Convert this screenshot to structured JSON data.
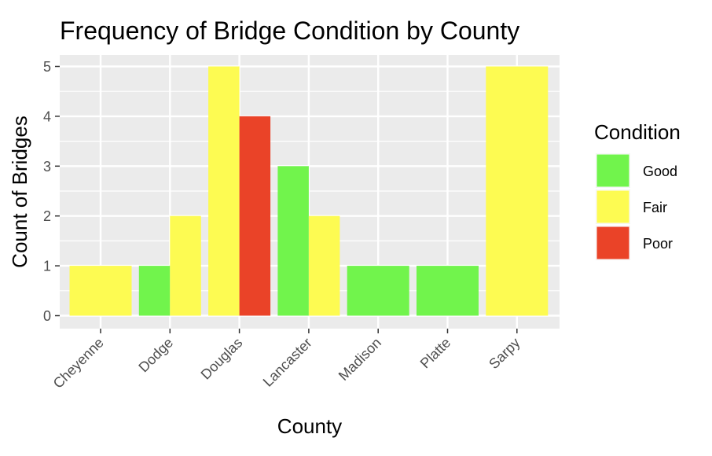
{
  "chart_data": {
    "type": "bar",
    "title": "Frequency of Bridge Condition by County",
    "xlabel": "County",
    "ylabel": "Count of Bridges",
    "ylim": [
      0,
      5
    ],
    "yticks": [
      0,
      1,
      2,
      3,
      4,
      5
    ],
    "grid": true,
    "legend": {
      "title": "Condition",
      "position": "right",
      "entries": [
        {
          "label": "Good",
          "color": "#71f44c"
        },
        {
          "label": "Fair",
          "color": "#fdfb52"
        },
        {
          "label": "Poor",
          "color": "#ea4328"
        }
      ]
    },
    "categories": [
      "Cheyenne",
      "Dodge",
      "Douglas",
      "Lancaster",
      "Madison",
      "Platte",
      "Sarpy"
    ],
    "bars": [
      {
        "county": "Cheyenne",
        "condition": "Fair",
        "value": 1
      },
      {
        "county": "Dodge",
        "condition": "Good",
        "value": 1
      },
      {
        "county": "Dodge",
        "condition": "Fair",
        "value": 2
      },
      {
        "county": "Douglas",
        "condition": "Fair",
        "value": 5
      },
      {
        "county": "Douglas",
        "condition": "Poor",
        "value": 4
      },
      {
        "county": "Lancaster",
        "condition": "Good",
        "value": 3
      },
      {
        "county": "Lancaster",
        "condition": "Fair",
        "value": 2
      },
      {
        "county": "Madison",
        "condition": "Good",
        "value": 1
      },
      {
        "county": "Platte",
        "condition": "Good",
        "value": 1
      },
      {
        "county": "Sarpy",
        "condition": "Fair",
        "value": 5
      }
    ]
  }
}
